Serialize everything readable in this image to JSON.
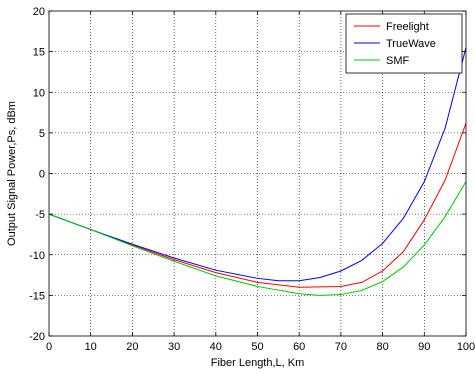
{
  "chart_data": {
    "type": "line",
    "xlabel": "Fiber Length,L, Km",
    "ylabel": "Output Signal Power,Ps, dBm",
    "xlim": [
      0,
      100
    ],
    "ylim": [
      -20,
      20
    ],
    "x_ticks": [
      0,
      10,
      20,
      30,
      40,
      50,
      60,
      70,
      80,
      90,
      100
    ],
    "y_ticks": [
      -20,
      -15,
      -10,
      -5,
      0,
      5,
      10,
      15,
      20
    ],
    "grid": true,
    "legend_position": "top-right",
    "series": [
      {
        "name": "Freelight",
        "color": "#ff0000",
        "x": [
          0,
          10,
          20,
          30,
          40,
          50,
          60,
          70,
          75,
          80,
          85,
          90,
          95,
          100
        ],
        "y": [
          -5,
          -6.9,
          -8.8,
          -10.6,
          -12.2,
          -13.4,
          -14.0,
          -13.9,
          -13.4,
          -12.0,
          -9.6,
          -5.7,
          -0.8,
          6.2
        ]
      },
      {
        "name": "TrueWave",
        "color": "#0000ff",
        "x": [
          0,
          10,
          20,
          30,
          40,
          50,
          55,
          60,
          65,
          70,
          75,
          80,
          85,
          90,
          95,
          100
        ],
        "y": [
          -5,
          -6.9,
          -8.7,
          -10.4,
          -11.9,
          -12.9,
          -13.2,
          -13.2,
          -12.8,
          -12.0,
          -10.7,
          -8.6,
          -5.5,
          -1.0,
          5.6,
          15.5
        ]
      },
      {
        "name": "SMF",
        "color": "#00cc00",
        "x": [
          0,
          10,
          20,
          30,
          40,
          50,
          60,
          65,
          70,
          75,
          80,
          85,
          90,
          95,
          100
        ],
        "y": [
          -5,
          -6.9,
          -8.9,
          -10.8,
          -12.6,
          -13.9,
          -14.8,
          -15.0,
          -14.9,
          -14.4,
          -13.3,
          -11.5,
          -8.8,
          -5.3,
          -1.0
        ]
      }
    ]
  }
}
